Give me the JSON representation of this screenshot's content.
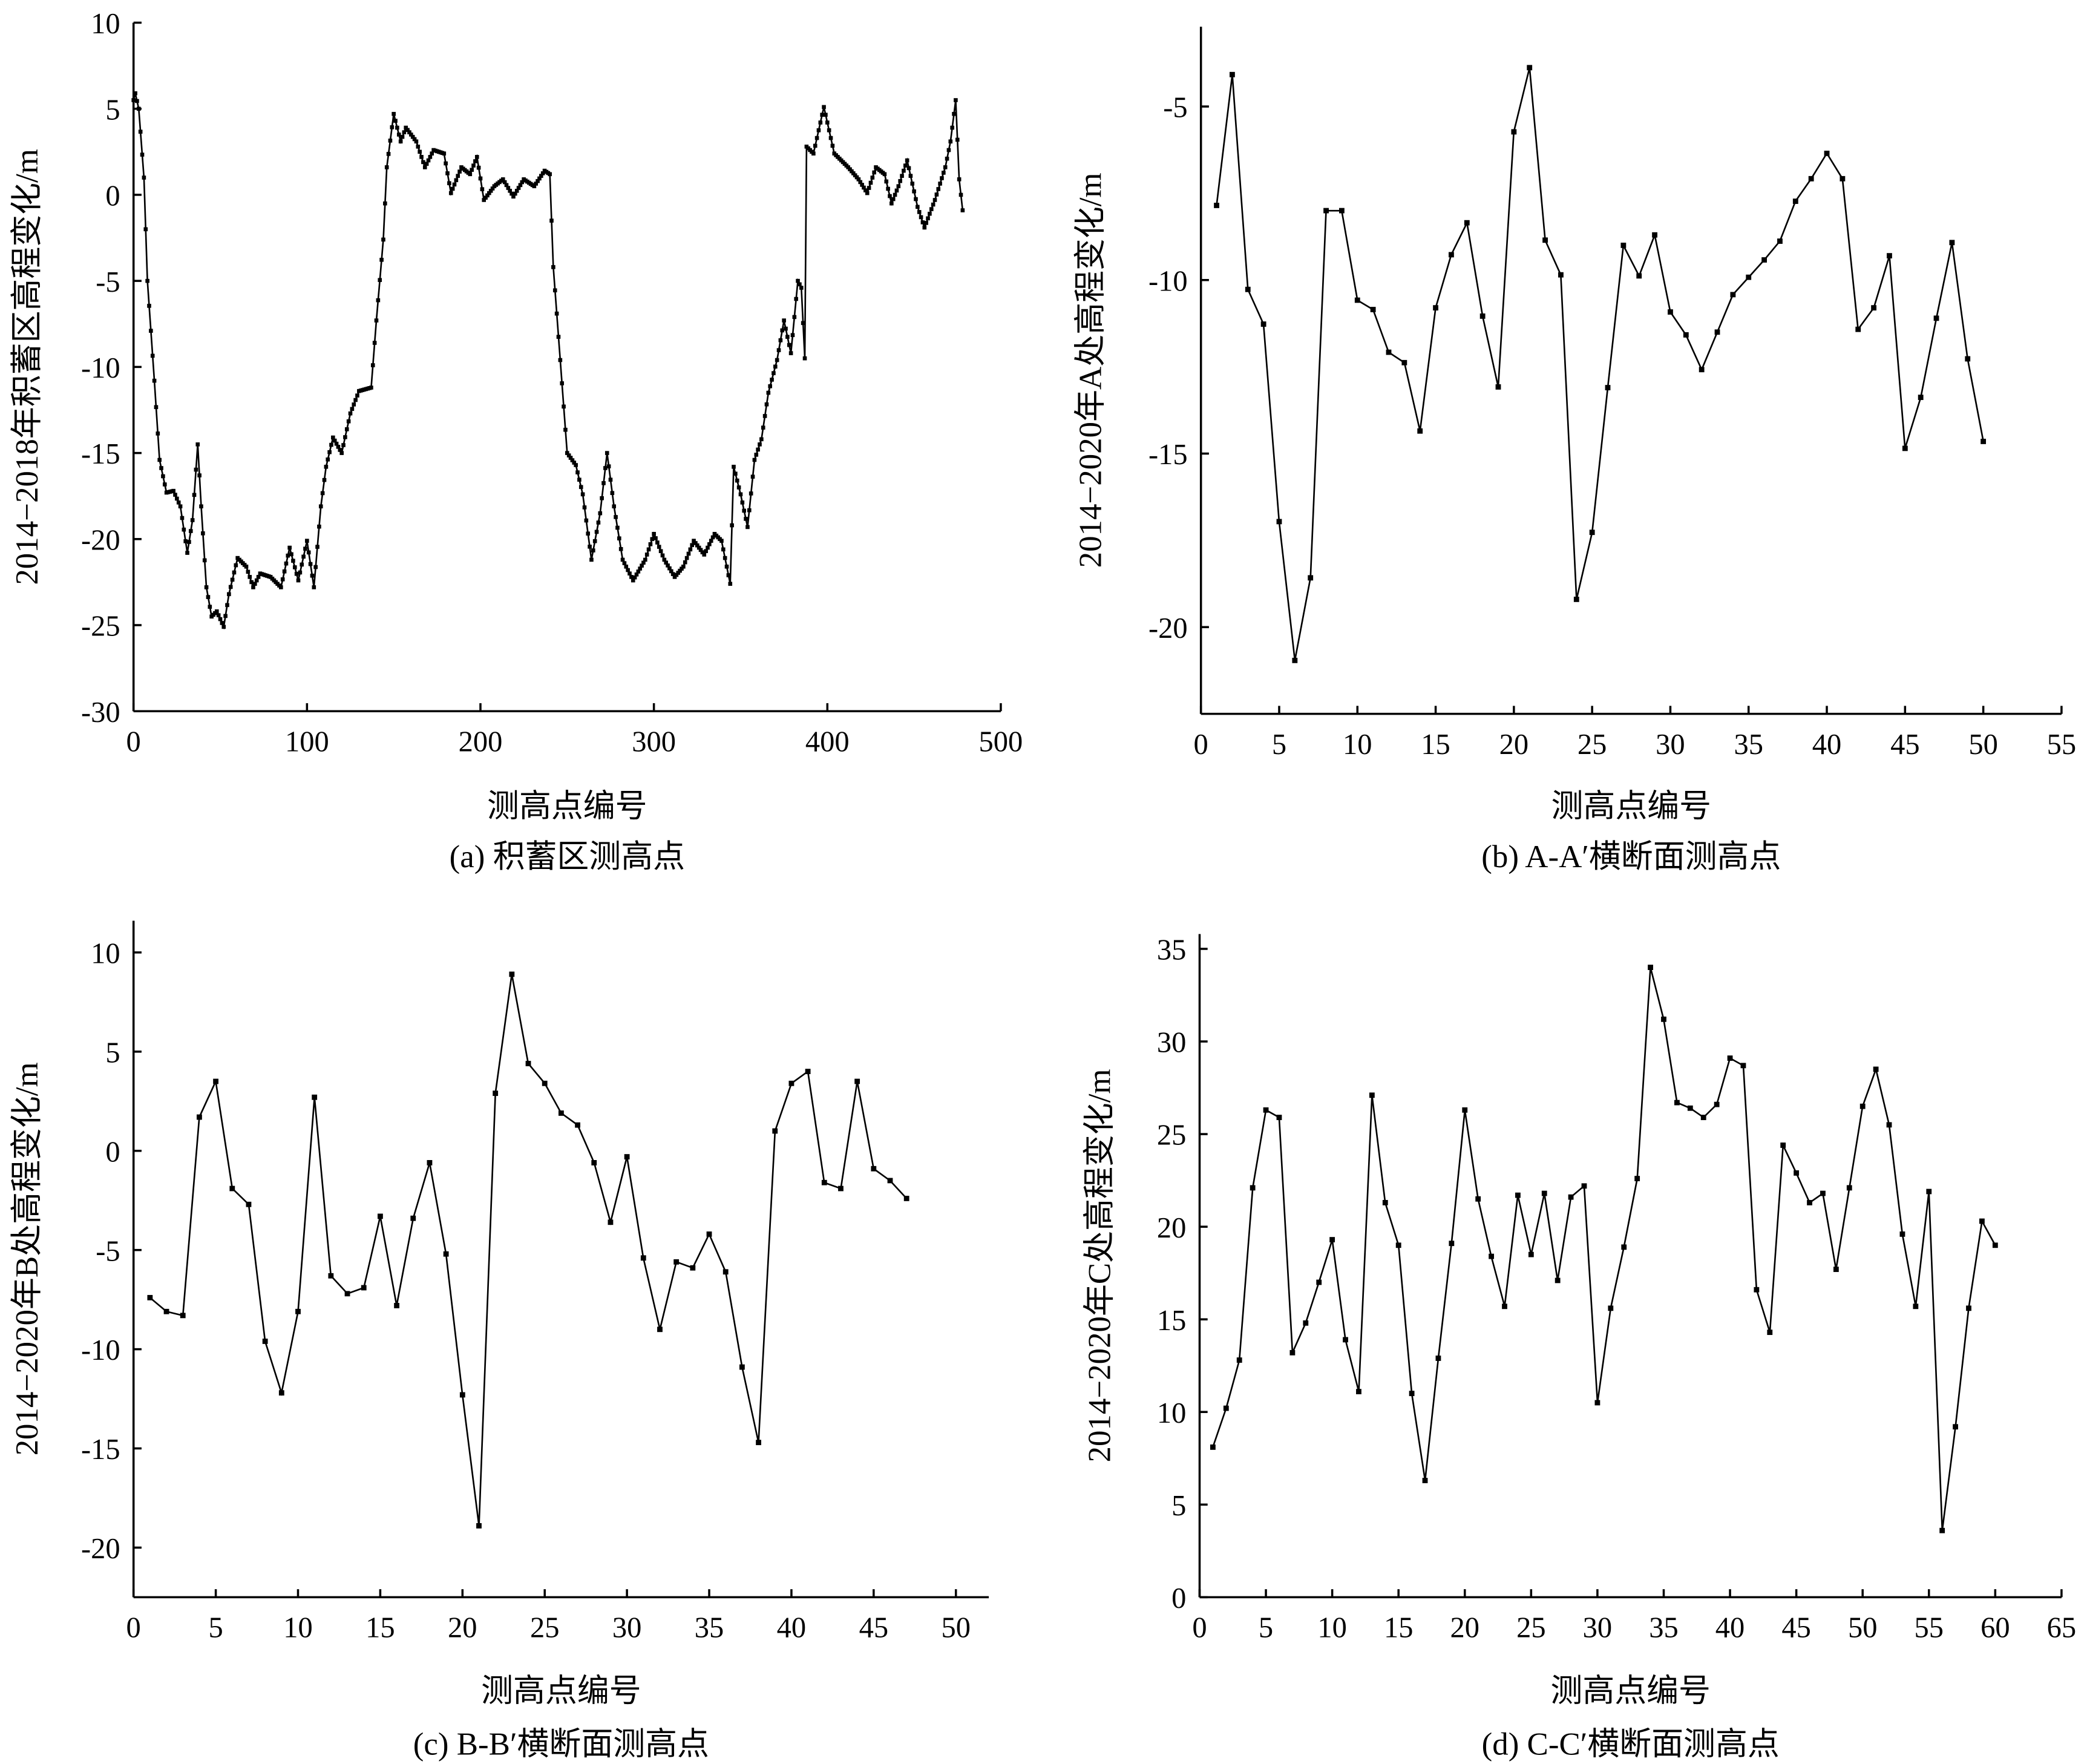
{
  "chart_data": [
    {
      "id": "a",
      "type": "line",
      "caption": "(a) 积蓄区测高点",
      "xlabel": "测高点编号",
      "ylabel": "2014−2018年积蓄区高程变化/m",
      "xlim": [
        0,
        500
      ],
      "ylim": [
        -30,
        10
      ],
      "xticks": [
        0,
        100,
        200,
        300,
        400,
        500
      ],
      "yticks": [
        10,
        5,
        0,
        -5,
        -10,
        -15,
        -20,
        -25,
        -30
      ],
      "interpolate_integer_x": true,
      "points": [
        [
          0,
          5.5
        ],
        [
          1,
          5.9
        ],
        [
          3,
          5
        ],
        [
          6,
          1
        ],
        [
          8,
          -5
        ],
        [
          12,
          -10.8
        ],
        [
          15,
          -15.4
        ],
        [
          19,
          -17.3
        ],
        [
          23,
          -17.2
        ],
        [
          27,
          -18.1
        ],
        [
          31,
          -20.8
        ],
        [
          34,
          -18.9
        ],
        [
          37,
          -14.5
        ],
        [
          39,
          -18.1
        ],
        [
          42,
          -22.8
        ],
        [
          45,
          -24.5
        ],
        [
          48,
          -24.2
        ],
        [
          52,
          -25.1
        ],
        [
          55,
          -23.2
        ],
        [
          60,
          -21.1
        ],
        [
          65,
          -21.6
        ],
        [
          69,
          -22.8
        ],
        [
          73,
          -22
        ],
        [
          79,
          -22.2
        ],
        [
          85,
          -22.8
        ],
        [
          90,
          -20.5
        ],
        [
          95,
          -22.4
        ],
        [
          100,
          -20.1
        ],
        [
          104,
          -22.8
        ],
        [
          108,
          -18.1
        ],
        [
          111,
          -15.8
        ],
        [
          115,
          -14.1
        ],
        [
          120,
          -15
        ],
        [
          125,
          -12.7
        ],
        [
          130,
          -11.4
        ],
        [
          137,
          -11.2
        ],
        [
          140,
          -7.3
        ],
        [
          144,
          -2.6
        ],
        [
          146,
          1.6
        ],
        [
          150,
          4.7
        ],
        [
          154,
          3.1
        ],
        [
          157,
          3.9
        ],
        [
          163,
          3.1
        ],
        [
          168,
          1.6
        ],
        [
          173,
          2.6
        ],
        [
          179,
          2.4
        ],
        [
          183,
          0.1
        ],
        [
          189,
          1.6
        ],
        [
          194,
          1.2
        ],
        [
          198,
          2.2
        ],
        [
          202,
          -0.3
        ],
        [
          208,
          0.5
        ],
        [
          213,
          0.9
        ],
        [
          219,
          -0.1
        ],
        [
          225,
          0.9
        ],
        [
          231,
          0.5
        ],
        [
          237,
          1.4
        ],
        [
          240,
          1.2
        ],
        [
          242,
          -4.2
        ],
        [
          246,
          -9.6
        ],
        [
          250,
          -15
        ],
        [
          255,
          -15.7
        ],
        [
          259,
          -17.4
        ],
        [
          264,
          -21.2
        ],
        [
          269,
          -18.5
        ],
        [
          273,
          -15
        ],
        [
          277,
          -18.1
        ],
        [
          282,
          -21.2
        ],
        [
          288,
          -22.4
        ],
        [
          295,
          -21.2
        ],
        [
          300,
          -19.7
        ],
        [
          306,
          -21.2
        ],
        [
          312,
          -22.2
        ],
        [
          317,
          -21.6
        ],
        [
          323,
          -20.1
        ],
        [
          329,
          -20.9
        ],
        [
          335,
          -19.7
        ],
        [
          339,
          -20.1
        ],
        [
          344,
          -22.6
        ],
        [
          346,
          -15.8
        ],
        [
          350,
          -17.4
        ],
        [
          354,
          -19.3
        ],
        [
          358,
          -15.4
        ],
        [
          362,
          -14.2
        ],
        [
          366,
          -11.5
        ],
        [
          371,
          -9.6
        ],
        [
          375,
          -7.3
        ],
        [
          379,
          -9.2
        ],
        [
          383,
          -5
        ],
        [
          385,
          -5.4
        ],
        [
          387,
          -9.5
        ],
        [
          388,
          2.8
        ],
        [
          392,
          2.4
        ],
        [
          398,
          5.1
        ],
        [
          404,
          2.4
        ],
        [
          412,
          1.6
        ],
        [
          418,
          0.9
        ],
        [
          423,
          0.1
        ],
        [
          428,
          1.6
        ],
        [
          433,
          1.2
        ],
        [
          437,
          -0.5
        ],
        [
          441,
          0.5
        ],
        [
          446,
          2
        ],
        [
          452,
          -0.7
        ],
        [
          456,
          -1.9
        ],
        [
          462,
          -0.3
        ],
        [
          468,
          1.6
        ],
        [
          471,
          3.1
        ],
        [
          474,
          5.5
        ],
        [
          476,
          0.9
        ],
        [
          478,
          -0.9
        ]
      ]
    },
    {
      "id": "b",
      "type": "line",
      "caption": "(b) A-A′横断面测高点",
      "xlabel": "测高点编号",
      "ylabel": "2014−2020年A处高程变化/m",
      "xlim": [
        0,
        55
      ],
      "ylim": [
        -22.5,
        -2.7
      ],
      "xticks": [
        0,
        5,
        10,
        15,
        20,
        25,
        30,
        35,
        40,
        45,
        50,
        55
      ],
      "yticks": [
        -5,
        -10,
        -15,
        -20
      ],
      "x_start": 1,
      "values": [
        -7.85,
        -4.08,
        -10.27,
        -11.27,
        -16.96,
        -20.96,
        -18.58,
        -8.0,
        -8.0,
        -10.58,
        -10.85,
        -12.08,
        -12.38,
        -14.35,
        -10.8,
        -9.27,
        -8.35,
        -11.04,
        -13.08,
        -5.73,
        -3.88,
        -8.85,
        -9.85,
        -19.2,
        -17.27,
        -13.1,
        -9.0,
        -9.88,
        -8.7,
        -10.92,
        -11.58,
        -12.58,
        -11.5,
        -10.42,
        -9.92,
        -9.42,
        -8.88,
        -7.73,
        -7.08,
        -6.35,
        -7.08,
        -11.42,
        -10.8,
        -9.3,
        -14.85,
        -13.38,
        -11.1,
        -8.92,
        -12.27,
        -14.65
      ]
    },
    {
      "id": "c",
      "type": "line",
      "caption": "(c) B-B′横断面测高点",
      "xlabel": "测高点编号",
      "ylabel": "2014−2020年B处高程变化/m",
      "xlim": [
        0,
        52
      ],
      "ylim": [
        -22.5,
        11.6
      ],
      "xticks": [
        0,
        5,
        10,
        15,
        20,
        25,
        30,
        35,
        40,
        45,
        50
      ],
      "yticks": [
        10,
        5,
        0,
        -5,
        -10,
        -15,
        -20
      ],
      "x_start": 1,
      "values": [
        -7.4,
        -8.1,
        -8.3,
        1.7,
        3.5,
        -1.9,
        -2.7,
        -9.6,
        -12.2,
        -8.1,
        2.7,
        -6.3,
        -7.2,
        -6.9,
        -3.3,
        -7.8,
        -3.4,
        -0.6,
        -5.2,
        -12.3,
        -18.9,
        2.9,
        8.9,
        4.4,
        3.4,
        1.9,
        1.3,
        -0.6,
        -3.6,
        -0.3,
        -5.4,
        -9.0,
        -5.6,
        -5.9,
        -4.2,
        -6.1,
        -10.9,
        -14.7,
        1.0,
        3.4,
        4.0,
        -1.6,
        -1.9,
        3.5,
        -0.9,
        -1.5,
        -2.4
      ]
    },
    {
      "id": "d",
      "type": "line",
      "caption": "(d) C-C′横断面测高点",
      "xlabel": "测高点编号",
      "ylabel": "2014−2020年C处高程变化/m",
      "xlim": [
        0,
        65
      ],
      "ylim": [
        0,
        35.8
      ],
      "xticks": [
        0,
        5,
        10,
        15,
        20,
        25,
        30,
        35,
        40,
        45,
        50,
        55,
        60,
        65
      ],
      "yticks": [
        35,
        30,
        25,
        20,
        15,
        10,
        5,
        0
      ],
      "x_start": 1,
      "values": [
        8.1,
        10.2,
        12.8,
        22.1,
        26.3,
        25.9,
        13.2,
        14.8,
        17.0,
        19.3,
        13.9,
        11.1,
        27.1,
        21.3,
        19.0,
        11.0,
        6.3,
        12.9,
        19.1,
        26.3,
        21.5,
        18.4,
        15.7,
        21.7,
        18.5,
        21.8,
        17.1,
        21.6,
        22.2,
        10.5,
        15.6,
        18.9,
        22.6,
        34.0,
        31.2,
        26.7,
        26.4,
        25.9,
        26.6,
        29.1,
        28.7,
        16.6,
        14.3,
        24.4,
        22.9,
        21.3,
        21.8,
        17.7,
        22.1,
        26.5,
        28.5,
        25.5,
        19.6,
        15.7,
        21.9,
        3.6,
        9.2,
        15.6,
        20.3,
        19.0
      ]
    }
  ]
}
